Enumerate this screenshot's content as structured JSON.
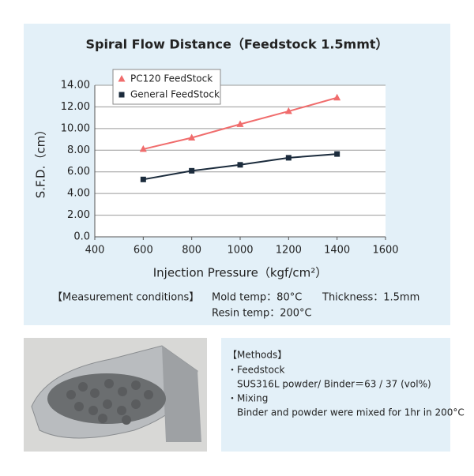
{
  "chart_data": {
    "type": "line",
    "title": "Spiral Flow Distance（Feedstock 1.5mmt）",
    "x_label": "Injection Pressure（kgf/cm²）",
    "y_label": "S.F.D.（cm）",
    "x": [
      600,
      800,
      1000,
      1200,
      1400
    ],
    "series": [
      {
        "name": "PC120 FeedStock",
        "color": "#f06c6c",
        "marker": "triangle",
        "values": [
          8.1,
          9.15,
          10.4,
          11.6,
          12.85
        ]
      },
      {
        "name": "General FeedStock",
        "color": "#1b2b3c",
        "marker": "square",
        "values": [
          5.3,
          6.1,
          6.65,
          7.3,
          7.65
        ]
      }
    ],
    "xlim": [
      400,
      1600
    ],
    "xticks": [
      400,
      600,
      800,
      1000,
      1200,
      1400,
      1600
    ],
    "ylim": [
      0,
      14
    ],
    "yticks": [
      {
        "value": 0,
        "label": "0.0"
      },
      {
        "value": 2,
        "label": "2.00"
      },
      {
        "value": 4,
        "label": "4.00"
      },
      {
        "value": 6,
        "label": "6.00"
      },
      {
        "value": 8,
        "label": "8.00"
      },
      {
        "value": 10,
        "label": "10.00"
      },
      {
        "value": 12,
        "label": "12.00"
      },
      {
        "value": 14,
        "label": "14.00"
      }
    ],
    "grid": true,
    "legend": "upper left"
  },
  "conditions": {
    "heading": "【Measurement conditions】",
    "mold": "Mold temp：80°C",
    "thickness": "Thickness：1.5mm",
    "resin": "Resin temp：200°C"
  },
  "methods": {
    "heading": "【Methods】",
    "lines": [
      "・Feedstock",
      "SUS316L powder/ Binder＝63 / 37 (vol%)",
      "・Mixing",
      "Binder and powder were mixed for 1hr in 200°C"
    ]
  }
}
